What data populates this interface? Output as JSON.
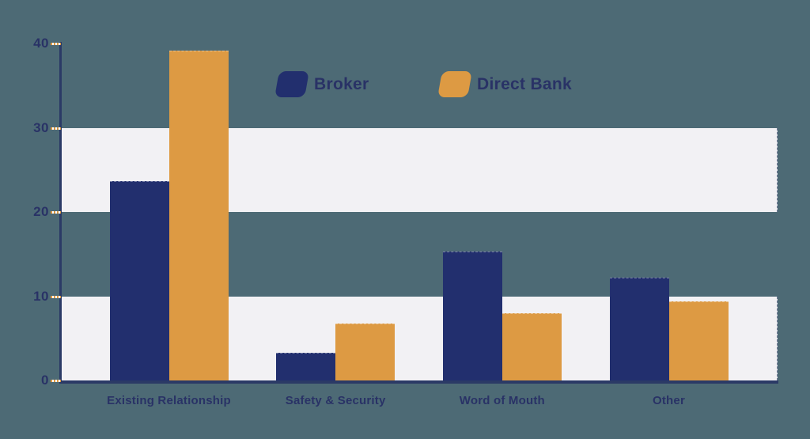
{
  "chart_data": {
    "type": "bar",
    "title": "",
    "xlabel": "",
    "ylabel": "",
    "categories": [
      "Existing Relationship",
      "Safety & Security",
      "Word of Mouth",
      "Other"
    ],
    "series": [
      {
        "name": "Broker",
        "color": "#222f6e",
        "values": [
          23.7,
          3.3,
          15.3,
          12.2
        ]
      },
      {
        "name": "Direct Bank",
        "color": "#dd9a43",
        "values": [
          39.2,
          6.8,
          8.0,
          9.4
        ]
      }
    ],
    "ylim": [
      0,
      40
    ],
    "yticks": [
      0,
      10,
      20,
      30,
      40
    ],
    "band_rows": [
      [
        0,
        10
      ],
      [
        20,
        30
      ]
    ],
    "grid": "banded-rows",
    "legend_position": "top-center"
  },
  "colors": {
    "background": "#4d6a75",
    "band": "#f2f1f4",
    "axis": "#2b3a66",
    "text": "#293266",
    "tick_dash": "#dd9a43"
  }
}
